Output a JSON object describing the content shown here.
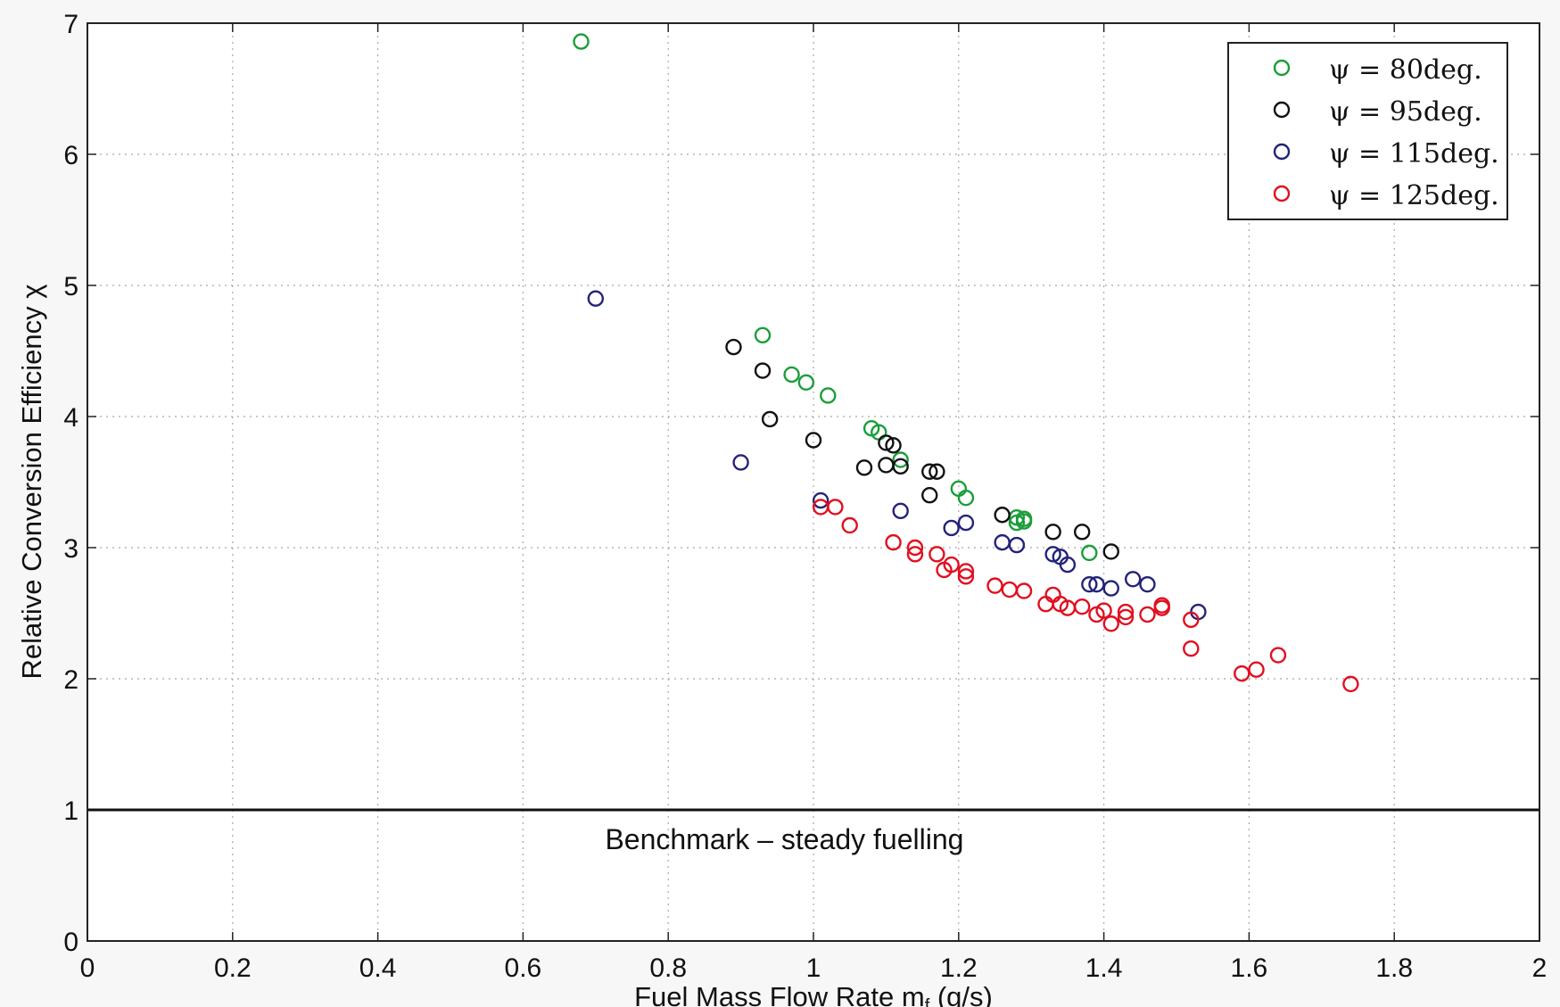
{
  "chart_data": {
    "type": "scatter",
    "title": "",
    "xlabel": "Fuel Mass Flow Rate m",
    "xlabel_sub": "f",
    "xlabel_unit": " (g/s)",
    "ylabel": "Relative Conversion Efficiency χ",
    "xlim": [
      0,
      2
    ],
    "ylim": [
      0,
      7
    ],
    "xticks": [
      0,
      0.2,
      0.4,
      0.6,
      0.8,
      1,
      1.2,
      1.4,
      1.6,
      1.8,
      2
    ],
    "xtick_labels": [
      "0",
      "0.2",
      "0.4",
      "0.6",
      "0.8",
      "1",
      "1.2",
      "1.4",
      "1.6",
      "1.8",
      "2"
    ],
    "yticks": [
      0,
      1,
      2,
      3,
      4,
      5,
      6,
      7
    ],
    "ytick_labels": [
      "0",
      "1",
      "2",
      "3",
      "4",
      "5",
      "6",
      "7"
    ],
    "grid": true,
    "legend_position": "top-right",
    "marker": "open-circle",
    "reference_line": {
      "y": 1,
      "label": "Benchmark – steady fuelling"
    },
    "series": [
      {
        "name": "ψ = 80deg.",
        "color": "#1a9e3a",
        "points": [
          [
            0.68,
            6.86
          ],
          [
            0.93,
            4.62
          ],
          [
            0.97,
            4.32
          ],
          [
            0.99,
            4.26
          ],
          [
            1.02,
            4.16
          ],
          [
            1.08,
            3.91
          ],
          [
            1.09,
            3.88
          ],
          [
            1.12,
            3.67
          ],
          [
            1.2,
            3.45
          ],
          [
            1.21,
            3.38
          ],
          [
            1.28,
            3.23
          ],
          [
            1.29,
            3.2
          ],
          [
            1.29,
            3.22
          ],
          [
            1.28,
            3.19
          ],
          [
            1.38,
            2.96
          ]
        ]
      },
      {
        "name": "ψ = 95deg.",
        "color": "#111111",
        "points": [
          [
            0.89,
            4.53
          ],
          [
            0.93,
            4.35
          ],
          [
            0.94,
            3.98
          ],
          [
            1.0,
            3.82
          ],
          [
            1.07,
            3.61
          ],
          [
            1.1,
            3.8
          ],
          [
            1.1,
            3.63
          ],
          [
            1.11,
            3.78
          ],
          [
            1.12,
            3.62
          ],
          [
            1.16,
            3.58
          ],
          [
            1.16,
            3.4
          ],
          [
            1.17,
            3.58
          ],
          [
            1.26,
            3.25
          ],
          [
            1.33,
            3.12
          ],
          [
            1.37,
            3.12
          ],
          [
            1.41,
            2.97
          ]
        ]
      },
      {
        "name": "ψ = 115deg.",
        "color": "#23237a",
        "points": [
          [
            0.7,
            4.9
          ],
          [
            0.9,
            3.65
          ],
          [
            1.01,
            3.36
          ],
          [
            1.12,
            3.28
          ],
          [
            1.19,
            3.15
          ],
          [
            1.21,
            3.19
          ],
          [
            1.26,
            3.04
          ],
          [
            1.28,
            3.02
          ],
          [
            1.33,
            2.95
          ],
          [
            1.34,
            2.93
          ],
          [
            1.35,
            2.87
          ],
          [
            1.38,
            2.72
          ],
          [
            1.39,
            2.72
          ],
          [
            1.41,
            2.69
          ],
          [
            1.44,
            2.76
          ],
          [
            1.46,
            2.72
          ],
          [
            1.53,
            2.51
          ]
        ]
      },
      {
        "name": "ψ = 125deg.",
        "color": "#e01020",
        "points": [
          [
            1.01,
            3.31
          ],
          [
            1.03,
            3.31
          ],
          [
            1.05,
            3.17
          ],
          [
            1.11,
            3.04
          ],
          [
            1.14,
            3.0
          ],
          [
            1.14,
            2.95
          ],
          [
            1.17,
            2.95
          ],
          [
            1.18,
            2.83
          ],
          [
            1.19,
            2.87
          ],
          [
            1.21,
            2.82
          ],
          [
            1.21,
            2.78
          ],
          [
            1.25,
            2.71
          ],
          [
            1.27,
            2.68
          ],
          [
            1.29,
            2.67
          ],
          [
            1.32,
            2.57
          ],
          [
            1.33,
            2.64
          ],
          [
            1.34,
            2.57
          ],
          [
            1.35,
            2.54
          ],
          [
            1.37,
            2.55
          ],
          [
            1.39,
            2.49
          ],
          [
            1.4,
            2.52
          ],
          [
            1.41,
            2.42
          ],
          [
            1.43,
            2.47
          ],
          [
            1.43,
            2.51
          ],
          [
            1.46,
            2.49
          ],
          [
            1.48,
            2.54
          ],
          [
            1.48,
            2.56
          ],
          [
            1.52,
            2.45
          ],
          [
            1.52,
            2.23
          ],
          [
            1.59,
            2.04
          ],
          [
            1.61,
            2.07
          ],
          [
            1.64,
            2.18
          ],
          [
            1.74,
            1.96
          ]
        ]
      }
    ]
  }
}
